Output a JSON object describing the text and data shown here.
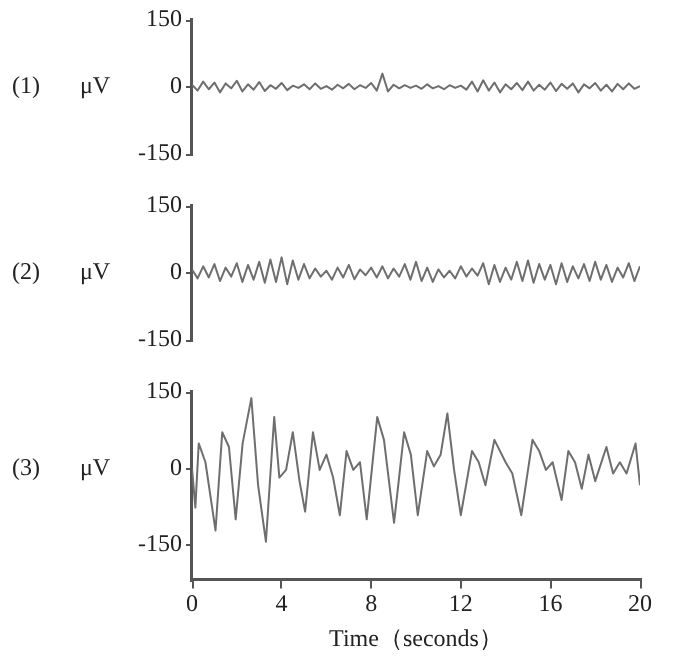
{
  "chart_data": [
    {
      "type": "line",
      "title": "(1)",
      "ylabel": "μV",
      "color": "#6e6e6e",
      "xlim": [
        0,
        20
      ],
      "ylim": [
        -150,
        150
      ],
      "yticks": [
        -150,
        0,
        150
      ],
      "tick_labels": "y",
      "grid": false,
      "legend": false,
      "marker": "none",
      "x": [
        0,
        0.25,
        0.5,
        0.75,
        1,
        1.25,
        1.5,
        1.75,
        2,
        2.25,
        2.5,
        2.75,
        3,
        3.25,
        3.5,
        3.75,
        4,
        4.25,
        4.5,
        4.75,
        5,
        5.25,
        5.5,
        5.75,
        6,
        6.25,
        6.5,
        6.75,
        7,
        7.25,
        7.5,
        7.75,
        8,
        8.25,
        8.5,
        8.75,
        9,
        9.25,
        9.5,
        9.75,
        10,
        10.25,
        10.5,
        10.75,
        11,
        11.25,
        11.5,
        11.75,
        12,
        12.25,
        12.5,
        12.75,
        13,
        13.25,
        13.5,
        13.75,
        14,
        14.25,
        14.5,
        14.75,
        15,
        15.25,
        15.5,
        15.75,
        16,
        16.25,
        16.5,
        16.75,
        17,
        17.25,
        17.5,
        17.75,
        18,
        18.25,
        18.5,
        18.75,
        19,
        19.25,
        19.5,
        19.75,
        20
      ],
      "values": [
        5,
        -8,
        12,
        -5,
        10,
        -12,
        8,
        -3,
        14,
        -10,
        6,
        -6,
        11,
        -9,
        4,
        -4,
        9,
        -7,
        3,
        -2,
        6,
        -5,
        8,
        -4,
        2,
        -6,
        5,
        -3,
        7,
        -5,
        4,
        -2,
        9,
        -8,
        30,
        -10,
        5,
        -3,
        4,
        -2,
        3,
        -4,
        6,
        -3,
        2,
        -5,
        4,
        -2,
        3,
        -6,
        12,
        -10,
        15,
        -8,
        10,
        -12,
        6,
        -5,
        9,
        -7,
        12,
        -8,
        5,
        -6,
        10,
        -9,
        7,
        -4,
        8,
        -12,
        6,
        -3,
        9,
        -8,
        5,
        -10,
        7,
        -5,
        8,
        -4,
        2
      ]
    },
    {
      "type": "line",
      "title": "(2)",
      "ylabel": "μV",
      "color": "#6e6e6e",
      "xlim": [
        0,
        20
      ],
      "ylim": [
        -150,
        150
      ],
      "yticks": [
        -150,
        0,
        150
      ],
      "tick_labels": "y",
      "grid": false,
      "legend": false,
      "marker": "none",
      "x": [
        0,
        0.25,
        0.5,
        0.75,
        1,
        1.25,
        1.5,
        1.75,
        2,
        2.25,
        2.5,
        2.75,
        3,
        3.25,
        3.5,
        3.75,
        4,
        4.25,
        4.5,
        4.75,
        5,
        5.25,
        5.5,
        5.75,
        6,
        6.25,
        6.5,
        6.75,
        7,
        7.25,
        7.5,
        7.75,
        8,
        8.25,
        8.5,
        8.75,
        9,
        9.25,
        9.5,
        9.75,
        10,
        10.25,
        10.5,
        10.75,
        11,
        11.25,
        11.5,
        11.75,
        12,
        12.25,
        12.5,
        12.75,
        13,
        13.25,
        13.5,
        13.75,
        14,
        14.25,
        14.5,
        14.75,
        15,
        15.25,
        15.5,
        15.75,
        16,
        16.25,
        16.5,
        16.75,
        17,
        17.25,
        17.5,
        17.75,
        18,
        18.25,
        18.5,
        18.75,
        19,
        19.25,
        19.5,
        19.75,
        20
      ],
      "values": [
        8,
        -12,
        15,
        -10,
        20,
        -18,
        12,
        -8,
        22,
        -20,
        18,
        -15,
        25,
        -22,
        30,
        -20,
        35,
        -25,
        28,
        -15,
        20,
        -12,
        10,
        -8,
        5,
        -15,
        12,
        -10,
        18,
        -14,
        8,
        -5,
        12,
        -10,
        15,
        -12,
        10,
        -8,
        20,
        -15,
        25,
        -18,
        12,
        -20,
        8,
        -10,
        5,
        -12,
        15,
        -8,
        10,
        -6,
        22,
        -25,
        18,
        -20,
        12,
        -15,
        25,
        -18,
        28,
        -22,
        20,
        -15,
        18,
        -25,
        22,
        -20,
        15,
        -12,
        20,
        -18,
        25,
        -15,
        18,
        -20,
        12,
        -10,
        22,
        -18,
        15
      ]
    },
    {
      "type": "line",
      "title": "(3)",
      "ylabel": "μV",
      "xlabel": "Time（seconds）",
      "color": "#6e6e6e",
      "xlim": [
        0,
        20
      ],
      "xticks": [
        0,
        4,
        8,
        12,
        16,
        20
      ],
      "ylim": [
        -220,
        150
      ],
      "yticks": [
        -150,
        0,
        150
      ],
      "grid": false,
      "legend": false,
      "marker": "none",
      "x": [
        0,
        0.15,
        0.3,
        0.6,
        1.05,
        1.35,
        1.65,
        1.95,
        2.26,
        2.65,
        2.95,
        3.3,
        3.67,
        3.9,
        4.2,
        4.5,
        4.8,
        5.05,
        5.4,
        5.7,
        6.0,
        6.3,
        6.6,
        6.9,
        7.2,
        7.5,
        7.8,
        8.27,
        8.57,
        9.02,
        9.47,
        9.77,
        10.08,
        10.5,
        10.8,
        11.1,
        11.4,
        11.7,
        12.0,
        12.5,
        12.8,
        13.1,
        13.5,
        14.0,
        14.3,
        14.7,
        15.2,
        15.5,
        15.8,
        16.1,
        16.5,
        16.8,
        17.1,
        17.4,
        17.7,
        18.0,
        18.5,
        18.8,
        19.1,
        19.4,
        19.8,
        20
      ],
      "values": [
        0,
        -77,
        49,
        12,
        -122,
        71,
        42,
        -100,
        49,
        138,
        -33,
        -144,
        101,
        -18,
        -3,
        71,
        -25,
        -85,
        71,
        -3,
        27,
        -18,
        -92,
        34,
        -3,
        12,
        -100,
        101,
        56,
        -107,
        71,
        27,
        -92,
        34,
        4,
        27,
        108,
        -3,
        -92,
        34,
        12,
        -33,
        56,
        12,
        -10,
        -92,
        56,
        34,
        -3,
        12,
        -62,
        34,
        12,
        -40,
        27,
        -25,
        42,
        -10,
        12,
        -10,
        49,
        -33
      ]
    }
  ]
}
